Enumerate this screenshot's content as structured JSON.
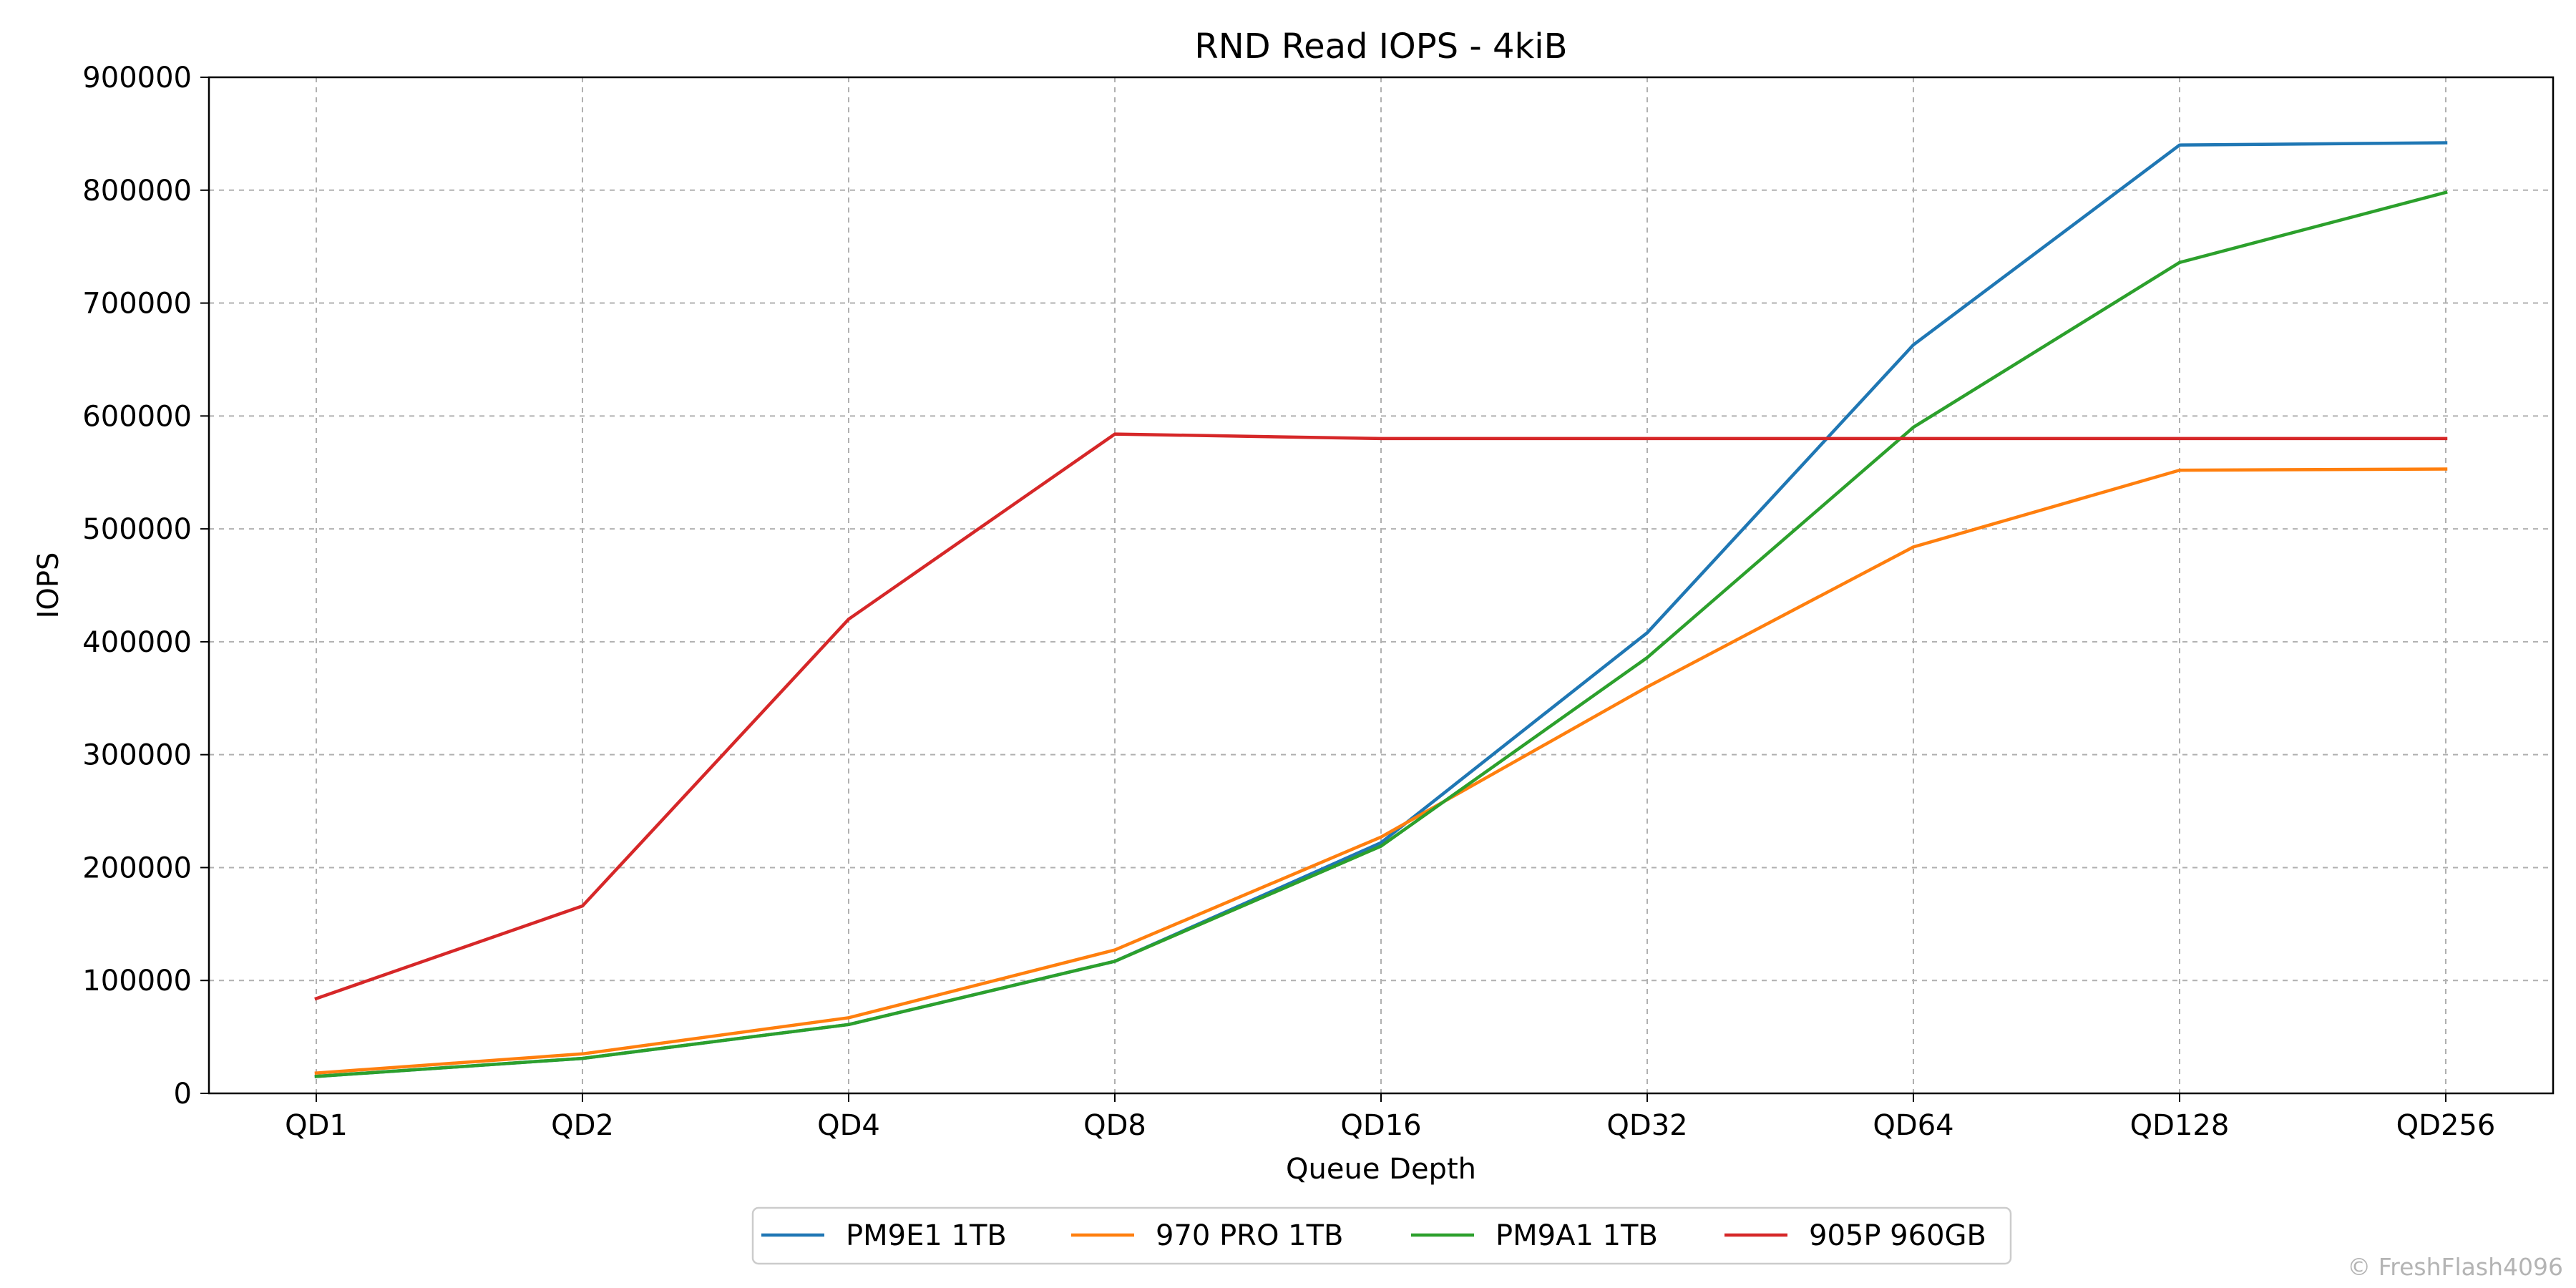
{
  "chart_data": {
    "type": "line",
    "title": "RND Read IOPS - 4kiB",
    "xlabel": "Queue Depth",
    "ylabel": "IOPS",
    "categories": [
      "QD1",
      "QD2",
      "QD4",
      "QD8",
      "QD16",
      "QD32",
      "QD64",
      "QD128",
      "QD256"
    ],
    "ylim": [
      0,
      900000
    ],
    "yticks": [
      "0",
      "100000",
      "200000",
      "300000",
      "400000",
      "500000",
      "600000",
      "700000",
      "800000",
      "900000"
    ],
    "grid": true,
    "legend_position": "bottom-center",
    "series": [
      {
        "name": "PM9E1 1TB",
        "color": "#1f77b4",
        "values": [
          15000,
          31000,
          61000,
          117000,
          222000,
          408000,
          663000,
          840000,
          842000
        ]
      },
      {
        "name": "970 PRO 1TB",
        "color": "#ff7f0e",
        "values": [
          18000,
          35000,
          67000,
          127000,
          227000,
          360000,
          484000,
          552000,
          553000
        ]
      },
      {
        "name": "PM9A1 1TB",
        "color": "#2ca02c",
        "values": [
          15000,
          31000,
          61000,
          117000,
          219000,
          386000,
          590000,
          736000,
          798000
        ]
      },
      {
        "name": "905P 960GB",
        "color": "#d62728",
        "values": [
          84000,
          166000,
          420000,
          584000,
          580000,
          580000,
          580000,
          580000,
          580000
        ]
      }
    ]
  },
  "watermark": "© FreshFlash4096"
}
